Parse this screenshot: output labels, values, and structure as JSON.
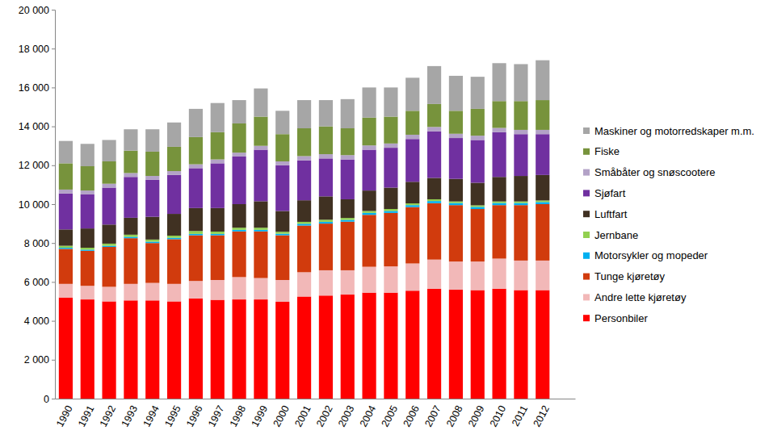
{
  "chart_data": {
    "type": "bar",
    "stacked": true,
    "grid": false,
    "legend": "right",
    "categories": [
      "1990",
      "1991",
      "1992",
      "1993",
      "1994",
      "1995",
      "1996",
      "1997",
      "1998",
      "1999",
      "2000",
      "2001",
      "2002",
      "2003",
      "2004",
      "2005",
      "2006",
      "2007",
      "2008",
      "2009",
      "2010",
      "2011",
      "2012",
      null
    ],
    "ylim": [
      0,
      20000
    ],
    "yticks": [
      0,
      {
        "value": 2000,
        "label": "2 000"
      },
      {
        "value": 4000,
        "label": "4 000"
      },
      {
        "value": 6000,
        "label": "6 000"
      },
      {
        "value": 8000,
        "label": "8 000"
      },
      {
        "value": 10000,
        "label": "10 000"
      },
      {
        "value": 12000,
        "label": "12 000"
      },
      {
        "value": 14000,
        "label": "14 000"
      },
      {
        "value": 16000,
        "label": "16 000"
      },
      {
        "value": 18000,
        "label": "18 000"
      },
      {
        "value": 20000,
        "label": "20 000"
      }
    ],
    "series": [
      {
        "name": "Personbiler",
        "color": "#ff0000",
        "values": [
          5200,
          5100,
          5000,
          5050,
          5050,
          5000,
          5150,
          5080,
          5100,
          5100,
          4980,
          5250,
          5300,
          5350,
          5450,
          5450,
          5550,
          5650,
          5600,
          5580,
          5650,
          5580,
          5580,
          null
        ]
      },
      {
        "name": "Andre lette kjøretøy",
        "color": "#f2b8b8",
        "values": [
          700,
          700,
          750,
          850,
          900,
          900,
          900,
          1020,
          1150,
          1100,
          1120,
          1250,
          1300,
          1250,
          1330,
          1350,
          1400,
          1500,
          1450,
          1470,
          1550,
          1520,
          1520,
          null
        ]
      },
      {
        "name": "Tunge kjøretøy",
        "color": "#d13b0d",
        "values": [
          1800,
          1800,
          2050,
          2350,
          2050,
          2300,
          2350,
          2300,
          2350,
          2400,
          2300,
          2400,
          2400,
          2500,
          2670,
          2750,
          2900,
          2900,
          2900,
          2700,
          2750,
          2850,
          2900,
          null
        ]
      },
      {
        "name": "Motorsykler og mopeder",
        "color": "#00b0f0",
        "values": [
          60,
          60,
          60,
          70,
          70,
          70,
          70,
          70,
          80,
          80,
          80,
          90,
          90,
          90,
          100,
          100,
          100,
          110,
          110,
          110,
          110,
          110,
          110,
          null
        ]
      },
      {
        "name": "Jernbane",
        "color": "#92d050",
        "values": [
          100,
          100,
          110,
          110,
          110,
          110,
          150,
          120,
          110,
          110,
          100,
          100,
          110,
          100,
          100,
          100,
          90,
          90,
          80,
          80,
          80,
          80,
          80,
          null
        ]
      },
      {
        "name": "Luftfart",
        "color": "#403122",
        "values": [
          840,
          990,
          980,
          870,
          1170,
          1120,
          1180,
          1210,
          1210,
          1360,
          1070,
          1110,
          1200,
          960,
          1050,
          1100,
          1110,
          1100,
          1160,
          1160,
          1260,
          1310,
          1310,
          null
        ]
      },
      {
        "name": "Sjøfart",
        "color": "#7030a0",
        "values": [
          1850,
          1750,
          1900,
          2100,
          1900,
          2000,
          2050,
          2300,
          2450,
          2650,
          2350,
          2050,
          1950,
          2050,
          2100,
          2050,
          2200,
          2400,
          2100,
          2200,
          2300,
          2150,
          2100,
          null
        ]
      },
      {
        "name": "Småbåter og snøscootere",
        "color": "#b3a2c7",
        "values": [
          200,
          200,
          200,
          200,
          200,
          200,
          200,
          200,
          200,
          200,
          200,
          220,
          220,
          220,
          220,
          220,
          220,
          220,
          220,
          220,
          220,
          220,
          220,
          null
        ]
      },
      {
        "name": "Fiske",
        "color": "#77933c",
        "values": [
          1350,
          1250,
          1150,
          1150,
          1250,
          1250,
          1400,
          1400,
          1500,
          1500,
          1400,
          1430,
          1430,
          1380,
          1430,
          1380,
          1230,
          1180,
          1180,
          1380,
          1380,
          1480,
          1530,
          null
        ]
      },
      {
        "name": "Maskiner og motorredskaper m.m.",
        "color": "#a6a6a6",
        "values": [
          1150,
          1150,
          1100,
          1100,
          1150,
          1250,
          1450,
          1500,
          1200,
          1450,
          1200,
          1450,
          1350,
          1500,
          1550,
          1500,
          1700,
          1950,
          1800,
          1650,
          1950,
          1900,
          2050,
          null
        ]
      }
    ]
  }
}
